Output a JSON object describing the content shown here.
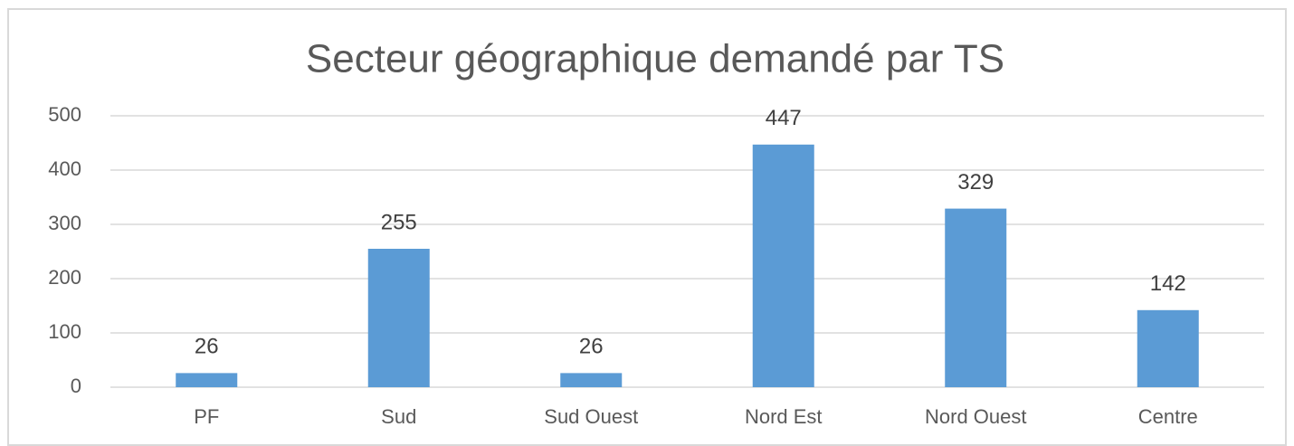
{
  "chart_data": {
    "type": "bar",
    "title": "Secteur géographique demandé par TS",
    "categories": [
      "PF",
      "Sud",
      "Sud Ouest",
      "Nord Est",
      "Nord Ouest",
      "Centre"
    ],
    "values": [
      26,
      255,
      26,
      447,
      329,
      142
    ],
    "color": "#5b9bd5",
    "ylim": [
      0,
      500
    ],
    "yticks": [
      0,
      100,
      200,
      300,
      400,
      500
    ],
    "grid": true,
    "data_labels": true
  }
}
